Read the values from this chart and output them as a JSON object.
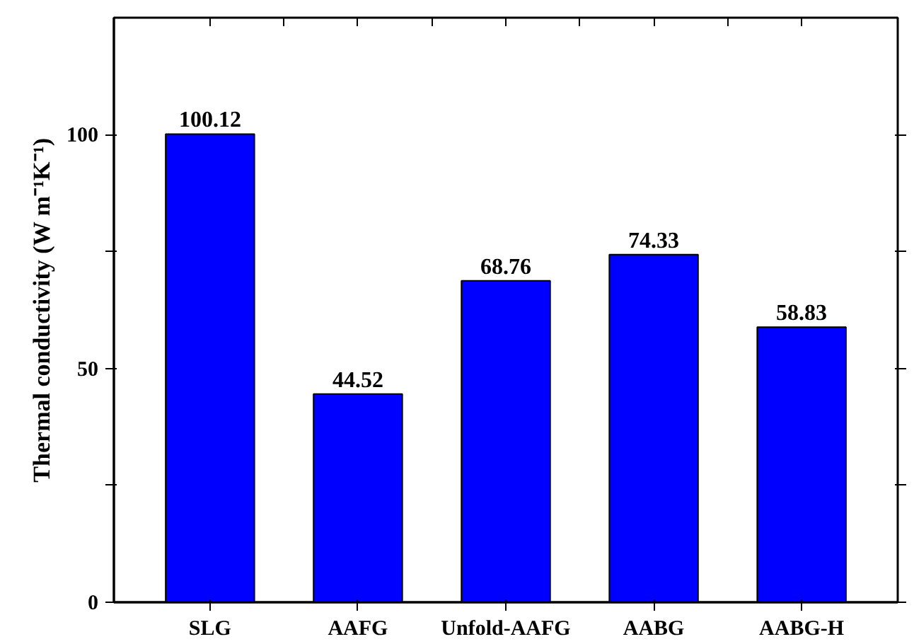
{
  "chart_data": {
    "type": "bar",
    "ylabel": "Thermal conductivity (W m⁻¹K⁻¹)",
    "categories": [
      "SLG",
      "AAFG",
      "Unfold-AAFG",
      "AABG",
      "AABG-H"
    ],
    "values": [
      100.12,
      44.52,
      68.76,
      74.33,
      58.83
    ],
    "color": "#0000ff",
    "ylim": [
      0,
      125
    ],
    "yticks": [
      0,
      {
        "value": 25,
        "label": null
      },
      50,
      {
        "value": 75,
        "label": null
      },
      100
    ],
    "data_labels": true,
    "grid": false
  }
}
